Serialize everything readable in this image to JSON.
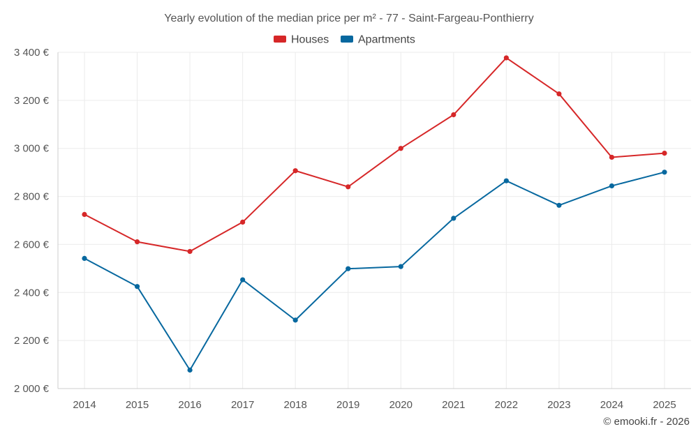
{
  "chart_data": {
    "type": "line",
    "title": "Yearly evolution of the median price per m² - 77 - Saint-Fargeau-Ponthierry",
    "categories": [
      "2014",
      "2015",
      "2016",
      "2017",
      "2018",
      "2019",
      "2020",
      "2021",
      "2022",
      "2023",
      "2024",
      "2025"
    ],
    "series": [
      {
        "name": "Houses",
        "color": "#d62728",
        "values": [
          2725,
          2611,
          2571,
          2693,
          2907,
          2840,
          3000,
          3140,
          3377,
          3227,
          2963,
          2980
        ]
      },
      {
        "name": "Apartments",
        "color": "#07689f",
        "values": [
          2542,
          2425,
          2077,
          2453,
          2285,
          2499,
          2508,
          2709,
          2865,
          2763,
          2844,
          2901
        ]
      }
    ],
    "xlabel": "",
    "ylabel": "",
    "ylim": [
      2000,
      3400
    ],
    "yticks": [
      2000,
      2200,
      2400,
      2600,
      2800,
      3000,
      3200,
      3400
    ],
    "ytick_labels": [
      "2 000 €",
      "2 200 €",
      "2 400 €",
      "2 600 €",
      "2 800 €",
      "3 000 €",
      "3 200 €",
      "3 400 €"
    ],
    "grid": true,
    "legend_position": "top-center"
  },
  "credit": "© emooki.fr - 2026"
}
